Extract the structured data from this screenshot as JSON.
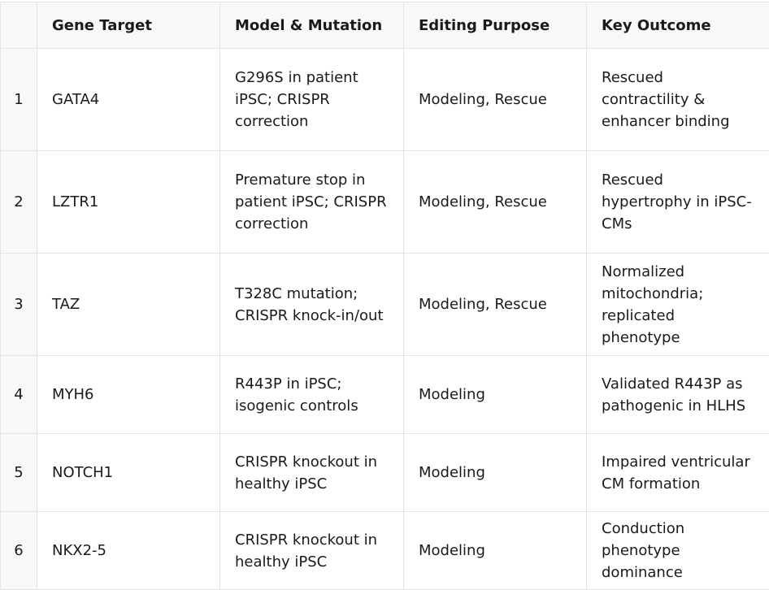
{
  "table": {
    "headers": [
      "",
      "Gene Target",
      "Model & Mutation",
      "Editing Purpose",
      "Key Outcome"
    ],
    "rows": [
      {
        "index": "1",
        "gene": "GATA4",
        "model": "G296S in patient iPSC; CRISPR correction",
        "purpose": "Modeling, Rescue",
        "outcome": "Rescued contractility & enhancer binding"
      },
      {
        "index": "2",
        "gene": "LZTR1",
        "model": "Premature stop in patient iPSC; CRISPR correction",
        "purpose": "Modeling, Rescue",
        "outcome": "Rescued hypertrophy in iPSC-CMs"
      },
      {
        "index": "3",
        "gene": "TAZ",
        "model": "T328C mutation; CRISPR knock-in/out",
        "purpose": "Modeling, Rescue",
        "outcome": "Normalized mitochondria; replicated phenotype"
      },
      {
        "index": "4",
        "gene": "MYH6",
        "model": "R443P in iPSC; isogenic controls",
        "purpose": "Modeling",
        "outcome": "Validated R443P as pathogenic in HLHS"
      },
      {
        "index": "5",
        "gene": "NOTCH1",
        "model": "CRISPR knockout in healthy iPSC",
        "purpose": "Modeling",
        "outcome": "Impaired ventricular CM formation"
      },
      {
        "index": "6",
        "gene": "NKX2-5",
        "model": "CRISPR knockout in healthy iPSC",
        "purpose": "Modeling",
        "outcome": "Conduction phenotype dominance"
      }
    ]
  }
}
